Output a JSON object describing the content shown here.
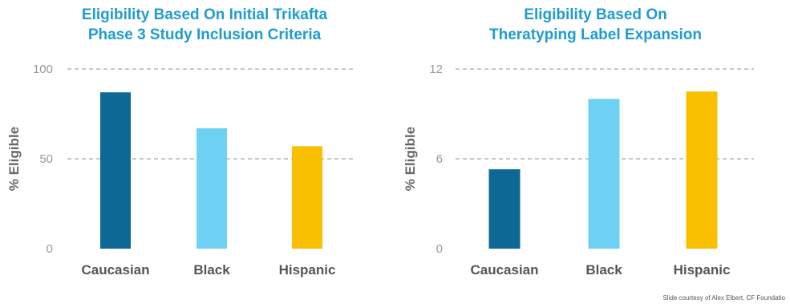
{
  "colors": {
    "title": "#1f9ccf",
    "axis_text": "#9a9a9a",
    "category_text": "#555555",
    "ylabel_text": "#666666",
    "grid": "#b5b5b5",
    "caucasian": "#0d6895",
    "black": "#6dd1f3",
    "hispanic": "#f8c000"
  },
  "chart_data": [
    {
      "type": "bar",
      "title_lines": [
        "Eligibility Based On Initial Trikafta",
        "Phase 3 Study Inclusion Criteria"
      ],
      "ylabel": "% Eligible",
      "categories": [
        "Caucasian",
        "Black",
        "Hispanic"
      ],
      "values": [
        87,
        67,
        57
      ],
      "ylim": [
        0,
        100
      ],
      "yticks": [
        0,
        50,
        100
      ],
      "grid": "dashed",
      "bar_colors": [
        "#0d6895",
        "#6dd1f3",
        "#f8c000"
      ]
    },
    {
      "type": "bar",
      "title_lines": [
        "Eligibility Based On",
        "Theratyping Label Expansion"
      ],
      "ylabel": "% Eligible",
      "categories": [
        "Caucasian",
        "Black",
        "Hispanic"
      ],
      "values": [
        5.3,
        10,
        10.5
      ],
      "ylim": [
        0,
        12
      ],
      "yticks": [
        0,
        6,
        12
      ],
      "grid": "dashed",
      "bar_colors": [
        "#0d6895",
        "#6dd1f3",
        "#f8c000"
      ]
    }
  ],
  "footer": {
    "credit": "Slide courtesy of Alex Elbert, CF Foundatio"
  }
}
